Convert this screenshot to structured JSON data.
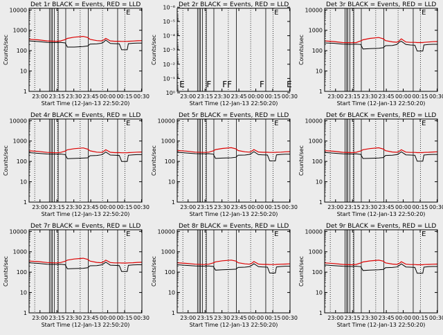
{
  "page": {
    "background": "#ececec"
  },
  "style": {
    "events_color": "#000000",
    "lld_color": "#dd0000",
    "axis_color": "#000000"
  },
  "common": {
    "ylabel": "Counts/sec",
    "xlabel": "Start Time (12-Jan-13 22:50:20)",
    "x_tick_labels": [
      "23:00",
      "23:15",
      "23:30",
      "23:45",
      "00:00",
      "00:15",
      "00:30"
    ],
    "x_tick_minutes": [
      9.67,
      24.67,
      39.67,
      54.67,
      69.67,
      84.67,
      99.67
    ],
    "xlim_minutes": [
      0,
      100
    ],
    "y_tick_labels_log": [
      "1",
      "10",
      "100",
      "1000",
      "10000"
    ],
    "y_tick_values_log": [
      1,
      10,
      100,
      1000,
      10000
    ],
    "ylim_log": [
      1,
      12000
    ],
    "dotted_markers_minutes": [
      5.0,
      25.3,
      45.3,
      65.1,
      84.9
    ],
    "solid_markers_minutes": [
      18.0,
      19.5,
      20.6,
      22.3,
      25.8,
      32.5,
      52.4,
      78.5
    ],
    "corner_markers": [
      "",
      "E"
    ]
  },
  "chart_data": [
    {
      "type": "line",
      "title": "Det 1r  BLACK = Events, RED = LLD",
      "scale": "log",
      "ylim": [
        1,
        12000
      ],
      "x": [
        0,
        8,
        16,
        24,
        28,
        32,
        34,
        40,
        48,
        52,
        54,
        60,
        64,
        66,
        68,
        72,
        76,
        80,
        82,
        84,
        87,
        88,
        92,
        96,
        100
      ],
      "series": [
        {
          "name": "Events",
          "values": [
            300,
            280,
            255,
            250,
            255,
            240,
            150,
            150,
            160,
            170,
            210,
            215,
            230,
            260,
            330,
            225,
            220,
            215,
            110,
            110,
            110,
            220,
            230,
            235,
            235
          ]
        },
        {
          "name": "LLD",
          "values": [
            360,
            340,
            300,
            290,
            300,
            350,
            400,
            460,
            500,
            440,
            360,
            310,
            300,
            330,
            400,
            300,
            290,
            290,
            285,
            285,
            285,
            290,
            295,
            305,
            310
          ]
        }
      ]
    },
    {
      "type": "line",
      "title": "Det 2r  BLACK = Events, RED = LLD",
      "scale": "log",
      "ylim": [
        0.8,
        1.2e-06
      ],
      "y_tick_labels": [
        "10⁰",
        "10⁻¹",
        "10⁻²",
        "10⁻³",
        "10⁻⁴",
        "10⁻⁵",
        "10⁻⁶"
      ],
      "y_tick_values": [
        1,
        0.1,
        0.01,
        0.001,
        0.0001,
        1e-05,
        1e-06
      ],
      "annotations": [
        "E",
        "F",
        "FF",
        "F",
        "E"
      ],
      "series": []
    },
    {
      "type": "line",
      "title": "Det 3r  BLACK = Events, RED = LLD",
      "scale": "log",
      "ylim": [
        1,
        12000
      ],
      "x": [
        0,
        8,
        16,
        24,
        28,
        32,
        34,
        40,
        48,
        52,
        54,
        60,
        64,
        66,
        68,
        72,
        76,
        80,
        82,
        84,
        87,
        88,
        92,
        96,
        100
      ],
      "series": [
        {
          "name": "Events",
          "values": [
            240,
            230,
            210,
            205,
            210,
            200,
            120,
            125,
            130,
            140,
            175,
            180,
            200,
            260,
            290,
            200,
            190,
            185,
            95,
            95,
            95,
            190,
            200,
            205,
            205
          ]
        },
        {
          "name": "LLD",
          "values": [
            300,
            280,
            250,
            245,
            250,
            300,
            340,
            400,
            440,
            380,
            310,
            270,
            260,
            300,
            380,
            265,
            255,
            255,
            250,
            250,
            250,
            255,
            265,
            275,
            280
          ]
        }
      ]
    },
    {
      "type": "line",
      "title": "Det 4r  BLACK = Events, RED = LLD",
      "scale": "log",
      "ylim": [
        1,
        12000
      ],
      "x": [
        0,
        8,
        16,
        24,
        28,
        32,
        34,
        40,
        48,
        52,
        54,
        60,
        64,
        66,
        68,
        72,
        76,
        80,
        82,
        84,
        87,
        88,
        92,
        96,
        100
      ],
      "series": [
        {
          "name": "Events",
          "values": [
            270,
            250,
            230,
            225,
            230,
            215,
            135,
            140,
            145,
            150,
            190,
            195,
            210,
            240,
            290,
            205,
            200,
            195,
            100,
            100,
            100,
            200,
            210,
            215,
            215
          ]
        },
        {
          "name": "LLD",
          "values": [
            330,
            310,
            275,
            265,
            275,
            320,
            370,
            420,
            460,
            400,
            330,
            285,
            275,
            305,
            370,
            280,
            270,
            270,
            265,
            265,
            265,
            270,
            275,
            285,
            290
          ]
        }
      ]
    },
    {
      "type": "line",
      "title": "Det 5r  BLACK = Events, RED = LLD",
      "scale": "log",
      "ylim": [
        1,
        12000
      ],
      "x": [
        0,
        8,
        16,
        24,
        28,
        32,
        34,
        40,
        48,
        52,
        54,
        60,
        64,
        66,
        68,
        72,
        76,
        80,
        82,
        84,
        87,
        88,
        92,
        96,
        100
      ],
      "series": [
        {
          "name": "Events",
          "values": [
            280,
            260,
            240,
            235,
            240,
            225,
            140,
            145,
            150,
            160,
            200,
            205,
            220,
            250,
            300,
            215,
            210,
            205,
            105,
            105,
            105,
            210,
            220,
            225,
            225
          ]
        },
        {
          "name": "LLD",
          "values": [
            340,
            320,
            285,
            275,
            285,
            330,
            380,
            430,
            470,
            410,
            340,
            295,
            285,
            315,
            380,
            290,
            280,
            280,
            275,
            275,
            275,
            280,
            285,
            295,
            300
          ]
        }
      ]
    },
    {
      "type": "line",
      "title": "Det 6r  BLACK = Events, RED = LLD",
      "scale": "log",
      "ylim": [
        1,
        12000
      ],
      "x": [
        0,
        8,
        16,
        24,
        28,
        32,
        34,
        40,
        48,
        52,
        54,
        60,
        64,
        66,
        68,
        72,
        76,
        80,
        82,
        84,
        87,
        88,
        92,
        96,
        100
      ],
      "series": [
        {
          "name": "Events",
          "values": [
            275,
            255,
            235,
            230,
            235,
            220,
            138,
            142,
            148,
            155,
            195,
            200,
            215,
            245,
            295,
            210,
            205,
            200,
            102,
            102,
            102,
            205,
            215,
            220,
            220
          ]
        },
        {
          "name": "LLD",
          "values": [
            335,
            315,
            280,
            270,
            280,
            325,
            375,
            425,
            465,
            405,
            335,
            290,
            280,
            310,
            375,
            285,
            275,
            275,
            270,
            270,
            270,
            275,
            280,
            290,
            295
          ]
        }
      ]
    },
    {
      "type": "line",
      "title": "Det 7r  BLACK = Events, RED = LLD",
      "scale": "log",
      "ylim": [
        1,
        12000
      ],
      "x": [
        0,
        8,
        16,
        24,
        28,
        32,
        34,
        40,
        48,
        52,
        54,
        60,
        64,
        66,
        68,
        72,
        76,
        80,
        82,
        84,
        87,
        88,
        92,
        96,
        100
      ],
      "series": [
        {
          "name": "Events",
          "values": [
            290,
            270,
            245,
            240,
            245,
            230,
            145,
            150,
            155,
            165,
            205,
            210,
            225,
            255,
            310,
            220,
            215,
            210,
            108,
            108,
            108,
            215,
            225,
            230,
            230
          ]
        },
        {
          "name": "LLD",
          "values": [
            350,
            330,
            295,
            285,
            295,
            340,
            390,
            440,
            480,
            420,
            350,
            300,
            290,
            320,
            390,
            295,
            285,
            285,
            280,
            280,
            280,
            285,
            290,
            300,
            305
          ]
        }
      ]
    },
    {
      "type": "line",
      "title": "Det 8r  BLACK = Events, RED = LLD",
      "scale": "log",
      "ylim": [
        1,
        12000
      ],
      "x": [
        0,
        8,
        16,
        24,
        28,
        32,
        34,
        40,
        48,
        52,
        54,
        60,
        64,
        66,
        68,
        72,
        76,
        80,
        82,
        84,
        87,
        88,
        92,
        96,
        100
      ],
      "series": [
        {
          "name": "Events",
          "values": [
            230,
            215,
            200,
            195,
            200,
            190,
            125,
            130,
            135,
            140,
            170,
            175,
            185,
            215,
            260,
            185,
            180,
            175,
            90,
            90,
            90,
            180,
            190,
            195,
            195
          ]
        },
        {
          "name": "LLD",
          "values": [
            290,
            270,
            245,
            235,
            245,
            285,
            320,
            360,
            390,
            350,
            290,
            255,
            245,
            270,
            330,
            250,
            240,
            240,
            235,
            235,
            235,
            240,
            245,
            250,
            255
          ]
        }
      ]
    },
    {
      "type": "line",
      "title": "Det 9r  BLACK = Events, RED = LLD",
      "scale": "log",
      "ylim": [
        1,
        12000
      ],
      "x": [
        0,
        8,
        16,
        24,
        28,
        32,
        34,
        40,
        48,
        52,
        54,
        60,
        64,
        66,
        68,
        72,
        76,
        80,
        82,
        84,
        87,
        88,
        92,
        96,
        100
      ],
      "series": [
        {
          "name": "Events",
          "values": [
            225,
            210,
            195,
            190,
            195,
            185,
            120,
            125,
            130,
            135,
            165,
            170,
            180,
            210,
            255,
            180,
            175,
            170,
            88,
            88,
            88,
            175,
            185,
            190,
            190
          ]
        },
        {
          "name": "LLD",
          "values": [
            285,
            265,
            240,
            230,
            240,
            280,
            315,
            355,
            385,
            345,
            285,
            250,
            240,
            265,
            325,
            245,
            235,
            235,
            230,
            230,
            230,
            235,
            240,
            245,
            250
          ]
        }
      ]
    }
  ]
}
